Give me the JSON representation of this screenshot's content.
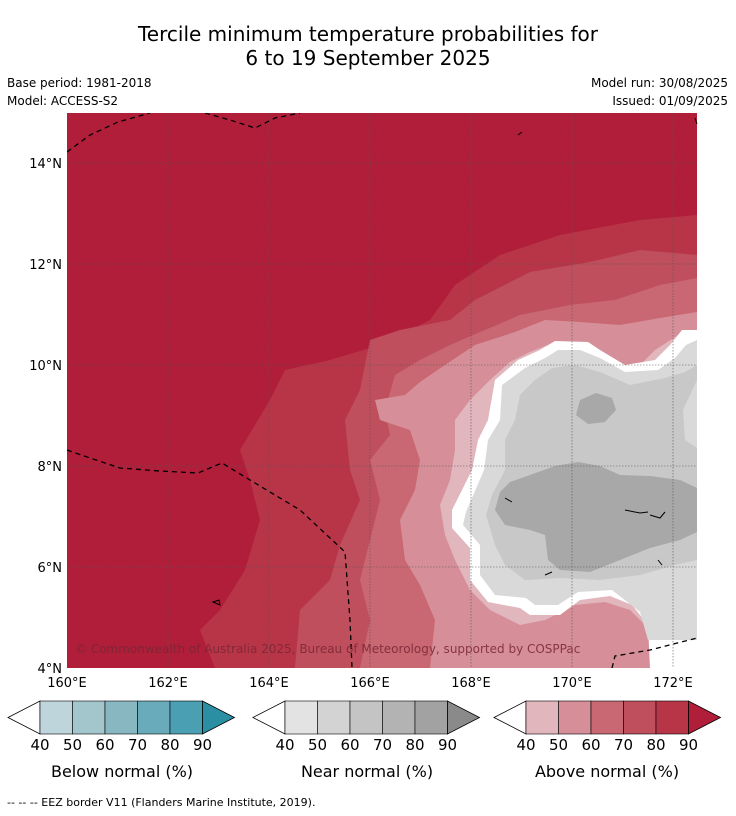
{
  "title": {
    "line1": "Tercile minimum temperature probabilities for",
    "line2": "6 to 19 September 2025"
  },
  "info": {
    "base_period": "Base period: 1981-2018",
    "model": "Model: ACCESS-S2",
    "model_run": "Model run: 30/08/2025",
    "issued": "Issued: 01/09/2025"
  },
  "map": {
    "copyright": "© Commonwealth of Australia 2025, Bureau of Meteorology, supported by COSPPac",
    "lat_labels": [
      "14°N",
      "12°N",
      "10°N",
      "8°N",
      "6°N",
      "4°N"
    ],
    "lon_labels": [
      "160°E",
      "162°E",
      "164°E",
      "166°E",
      "168°E",
      "170°E",
      "172°E"
    ],
    "gridlines": true
  },
  "colorbars": [
    {
      "name": "Below normal (%)",
      "ticks": [
        "40",
        "50",
        "60",
        "70",
        "80",
        "90"
      ],
      "colors": [
        "#ffffff",
        "#bed5dc",
        "#a3c6cd",
        "#88b7c2",
        "#6aabbb",
        "#4a9fb2",
        "#2a8fa3"
      ]
    },
    {
      "name": "Near normal (%)",
      "ticks": [
        "40",
        "50",
        "60",
        "70",
        "80",
        "90"
      ],
      "colors": [
        "#ffffff",
        "#e3e3e3",
        "#d3d3d3",
        "#c4c4c4",
        "#b3b3b3",
        "#a2a2a2",
        "#8a8a8a"
      ]
    },
    {
      "name": "Above normal (%)",
      "ticks": [
        "40",
        "50",
        "60",
        "70",
        "80",
        "90"
      ],
      "colors": [
        "#ffffff",
        "#e2b6bd",
        "#d68f99",
        "#c96873",
        "#bf4f5d",
        "#b83548",
        "#b01e3a"
      ]
    }
  ],
  "footer": "-- -- -- EEZ border V11 (Flanders Marine Institute, 2019)."
}
